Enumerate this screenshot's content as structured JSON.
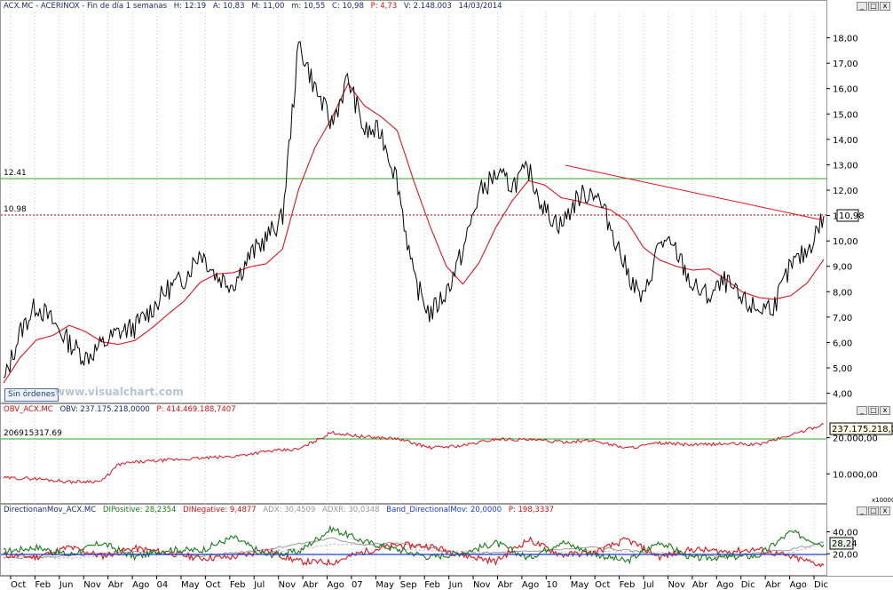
{
  "window": {
    "buttons": [
      "_",
      "□",
      "x"
    ]
  },
  "panels": {
    "price": {
      "header": {
        "symbol": "ACX.MC - ACERINOX - Fin de día 1 semanas",
        "h": "H: 12:19",
        "a": "A: 10,83",
        "m": "M: 11,00",
        "mn": "m: 10,55",
        "c": "C: 10,98",
        "p": "P: 4,73",
        "v": "V: 2.148.003",
        "d": "14/03/2014"
      },
      "level_labels": {
        "upper": "12.41",
        "lower": "10.98"
      },
      "last_value_box": "10,98",
      "orders_button": "Sin órdenes",
      "watermark": "www.visualchart.com",
      "y_ticks": [
        "18,00",
        "17,00",
        "16,00",
        "15,00",
        "14,00",
        "13,00",
        "12,00",
        "11,00",
        "10,00",
        "9,00",
        "8,00",
        "7,00",
        "6,00",
        "5,00",
        "4,00"
      ]
    },
    "obv": {
      "header": {
        "name": "OBV_ACX.MC",
        "obv": "OBV: 237.175.218,0000",
        "p": "P: 414.469.188,7407"
      },
      "level_label": "206915317.69",
      "last_value_box": "237.175.218,00",
      "y_ticks": [
        "20.000,00",
        "10.000,00"
      ],
      "scale_note": "x10000"
    },
    "dmi": {
      "header": {
        "name": "DirectionanMov_ACX.MC",
        "dip": "DIPositive: 28,2354",
        "din": "DINegative: 9,4877",
        "adx": "ADX: 30,4509",
        "adxr": "ADXR: 30,0348",
        "band": "Band_DirectionalMov: 20,0000",
        "p": "P: 198,3337"
      },
      "last_value_box": "28,24",
      "y_ticks": [
        "40,00",
        "20,00"
      ]
    }
  },
  "x_ticks": [
    "Oct",
    "Feb",
    "Jun",
    "Nov",
    "Abr",
    "Ago",
    "04",
    "May",
    "Oct",
    "Feb",
    "Jul",
    "Nov",
    "Abr",
    "Ago",
    "07",
    "May",
    "Sep",
    "Feb",
    "Jun",
    "Nov",
    "Abr",
    "Ago",
    "10",
    "May",
    "Oct",
    "Feb",
    "Jul",
    "Nov",
    "Abr",
    "Ago",
    "Dic",
    "Abr",
    "Ago",
    "Dic"
  ],
  "colors": {
    "price_line": "#000000",
    "moving_average": "#e0141e",
    "trendline": "#e0141e",
    "upper_level": "#22aa22",
    "lower_level": "#cc0000",
    "obv_line": "#e0141e",
    "dip_line": "#1a7a1a",
    "din_line": "#e0141e",
    "band_line": "#1f3fcf"
  },
  "chart_data": [
    {
      "type": "line",
      "title": "ACX.MC - ACERINOX - Fin de día 1 semanas",
      "ylim": [
        3.6,
        19.0
      ],
      "series": [
        {
          "name": "ACX.MC",
          "x": [
            0,
            2,
            4,
            6,
            8,
            10,
            12,
            14,
            16,
            18,
            20,
            22,
            24,
            26,
            28,
            30,
            32,
            34,
            36,
            38,
            40,
            42,
            44,
            46,
            48,
            50,
            52,
            54,
            56,
            58,
            60,
            62,
            64,
            66,
            68,
            70,
            72,
            74,
            76,
            78,
            80,
            82,
            84,
            86,
            88,
            90,
            92,
            94,
            96,
            98,
            100
          ],
          "values": [
            4.4,
            6.4,
            7.5,
            6.8,
            6.0,
            5.4,
            5.9,
            6.4,
            6.6,
            7.3,
            8.1,
            8.5,
            9.6,
            8.6,
            8.3,
            9.4,
            10.1,
            10.9,
            17.8,
            16.0,
            14.6,
            16.4,
            14.3,
            14.3,
            12.4,
            8.5,
            7.1,
            8.0,
            9.6,
            11.9,
            12.6,
            12.2,
            12.8,
            11.2,
            10.6,
            11.7,
            12.0,
            10.6,
            8.8,
            7.6,
            10.0,
            9.6,
            8.2,
            7.8,
            8.4,
            7.6,
            7.3,
            7.5,
            9.0,
            9.6,
            10.98
          ]
        }
      ]
    },
    {
      "type": "line",
      "title": "OBV_ACX.MC",
      "ylim": [
        2000,
        26000
      ],
      "series": [
        {
          "name": "OBV",
          "x": [
            0,
            4,
            8,
            12,
            14,
            16,
            20,
            24,
            28,
            32,
            36,
            40,
            42,
            44,
            48,
            52,
            56,
            60,
            64,
            68,
            72,
            76,
            80,
            84,
            88,
            92,
            96,
            100
          ],
          "values": [
            8900,
            8700,
            7800,
            8000,
            12600,
            13200,
            13800,
            14300,
            14800,
            16200,
            16800,
            21400,
            20800,
            20200,
            19700,
            17200,
            17800,
            19600,
            19400,
            18800,
            19200,
            17100,
            18500,
            18000,
            18300,
            18100,
            20700,
            23718
          ]
        }
      ]
    },
    {
      "type": "line",
      "title": "DirectionanMov_ACX.MC",
      "ylim": [
        0,
        55
      ],
      "series": [
        {
          "name": "DIPositive",
          "x": [
            0,
            4,
            8,
            12,
            16,
            20,
            24,
            28,
            32,
            36,
            40,
            44,
            48,
            52,
            56,
            60,
            64,
            68,
            72,
            76,
            80,
            84,
            88,
            92,
            96,
            100
          ],
          "values": [
            22,
            26,
            19,
            30,
            17,
            24,
            23,
            35,
            19,
            22,
            43,
            31,
            24,
            17,
            21,
            30,
            16,
            31,
            20,
            13,
            31,
            16,
            17,
            18,
            40,
            28.24
          ]
        },
        {
          "name": "DINegative",
          "x": [
            0,
            4,
            8,
            12,
            16,
            20,
            24,
            28,
            32,
            36,
            40,
            44,
            48,
            52,
            56,
            60,
            64,
            68,
            72,
            76,
            80,
            84,
            88,
            92,
            96,
            100
          ],
          "values": [
            19,
            17,
            26,
            18,
            25,
            21,
            16,
            17,
            23,
            13,
            12,
            22,
            28,
            27,
            19,
            13,
            33,
            19,
            21,
            33,
            17,
            24,
            22,
            24,
            17,
            9.49
          ]
        },
        {
          "name": "ADX",
          "x": [
            0,
            8,
            16,
            24,
            32,
            40,
            44,
            48,
            56,
            64,
            72,
            80,
            88,
            96,
            100
          ],
          "values": [
            16,
            18,
            22,
            18,
            24,
            34,
            28,
            30,
            20,
            22,
            26,
            20,
            17,
            24,
            30.45
          ]
        },
        {
          "name": "ADXR",
          "x": [
            0,
            8,
            16,
            24,
            32,
            40,
            44,
            48,
            56,
            64,
            72,
            80,
            88,
            96,
            100
          ],
          "values": [
            17,
            16,
            20,
            19,
            21,
            28,
            30,
            24,
            22,
            19,
            23,
            21,
            18,
            21,
            30.03
          ]
        }
      ]
    }
  ]
}
